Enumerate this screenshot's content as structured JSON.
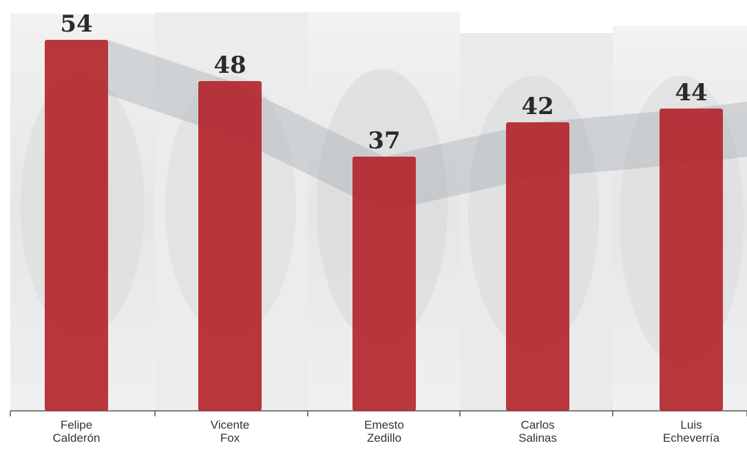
{
  "chart_data": {
    "type": "bar",
    "categories": [
      "Felipe Calderón",
      "Vicente Fox",
      "Emesto Zedillo",
      "Carlos Salinas",
      "Luis Echeverría"
    ],
    "values": [
      54,
      48,
      37,
      42,
      44
    ],
    "color": "#b3262c"
  }
}
